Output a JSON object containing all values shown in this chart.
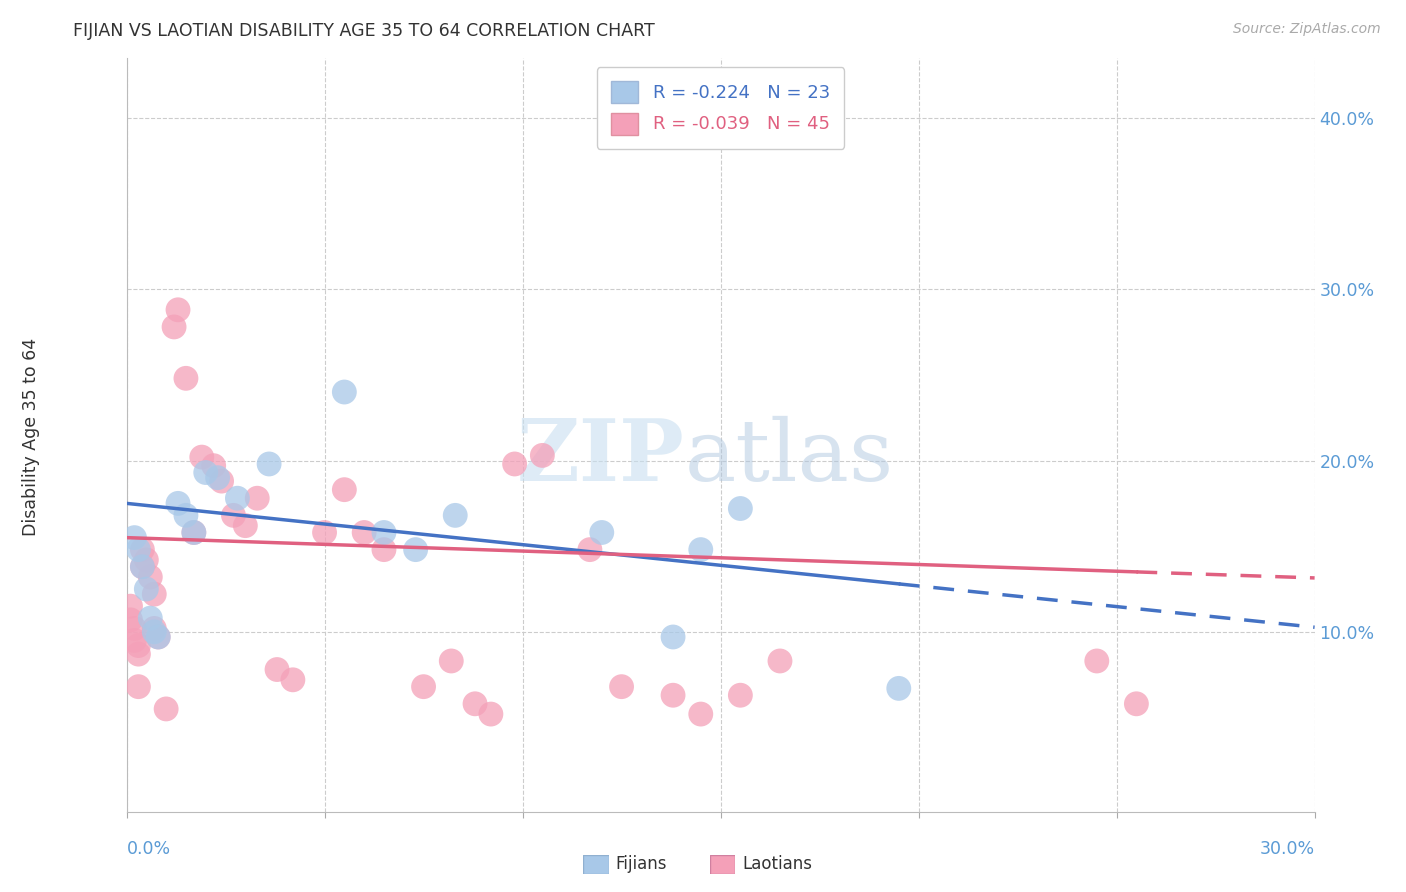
{
  "title": "FIJIAN VS LAOTIAN DISABILITY AGE 35 TO 64 CORRELATION CHART",
  "source": "Source: ZipAtlas.com",
  "ylabel": "Disability Age 35 to 64",
  "ylabel_right_ticks": [
    "10.0%",
    "20.0%",
    "30.0%",
    "40.0%"
  ],
  "ylabel_right_vals": [
    0.1,
    0.2,
    0.3,
    0.4
  ],
  "xlim": [
    0.0,
    0.3
  ],
  "ylim": [
    -0.005,
    0.435
  ],
  "legend_fijians": "R = -0.224   N = 23",
  "legend_laotians": "R = -0.039   N = 45",
  "fijian_color": "#a8c8e8",
  "laotian_color": "#f4a0b8",
  "fijian_line_color": "#4472c4",
  "laotian_line_color": "#e06080",
  "fijian_line_start_y": 0.175,
  "fijian_line_end_y": 0.128,
  "fijian_line_x_max": 0.195,
  "laotian_line_start_y": 0.155,
  "laotian_line_end_y": 0.135,
  "laotian_line_x_max": 0.255,
  "fijians_x": [
    0.002,
    0.003,
    0.004,
    0.005,
    0.006,
    0.007,
    0.008,
    0.013,
    0.015,
    0.017,
    0.02,
    0.023,
    0.028,
    0.036,
    0.055,
    0.065,
    0.073,
    0.083,
    0.12,
    0.138,
    0.145,
    0.155,
    0.195
  ],
  "fijians_y": [
    0.155,
    0.148,
    0.138,
    0.125,
    0.108,
    0.1,
    0.097,
    0.175,
    0.168,
    0.158,
    0.193,
    0.19,
    0.178,
    0.198,
    0.24,
    0.158,
    0.148,
    0.168,
    0.158,
    0.097,
    0.148,
    0.172,
    0.067
  ],
  "laotians_x": [
    0.001,
    0.001,
    0.002,
    0.002,
    0.003,
    0.003,
    0.003,
    0.004,
    0.004,
    0.005,
    0.006,
    0.007,
    0.007,
    0.008,
    0.01,
    0.012,
    0.013,
    0.015,
    0.017,
    0.019,
    0.022,
    0.024,
    0.027,
    0.03,
    0.033,
    0.038,
    0.042,
    0.05,
    0.055,
    0.06,
    0.065,
    0.075,
    0.082,
    0.088,
    0.092,
    0.098,
    0.105,
    0.117,
    0.125,
    0.138,
    0.145,
    0.155,
    0.165,
    0.245,
    0.255
  ],
  "laotians_y": [
    0.115,
    0.107,
    0.102,
    0.095,
    0.092,
    0.087,
    0.068,
    0.148,
    0.138,
    0.142,
    0.132,
    0.122,
    0.102,
    0.097,
    0.055,
    0.278,
    0.288,
    0.248,
    0.158,
    0.202,
    0.197,
    0.188,
    0.168,
    0.162,
    0.178,
    0.078,
    0.072,
    0.158,
    0.183,
    0.158,
    0.148,
    0.068,
    0.083,
    0.058,
    0.052,
    0.198,
    0.203,
    0.148,
    0.068,
    0.063,
    0.052,
    0.063,
    0.083,
    0.083,
    0.058
  ]
}
